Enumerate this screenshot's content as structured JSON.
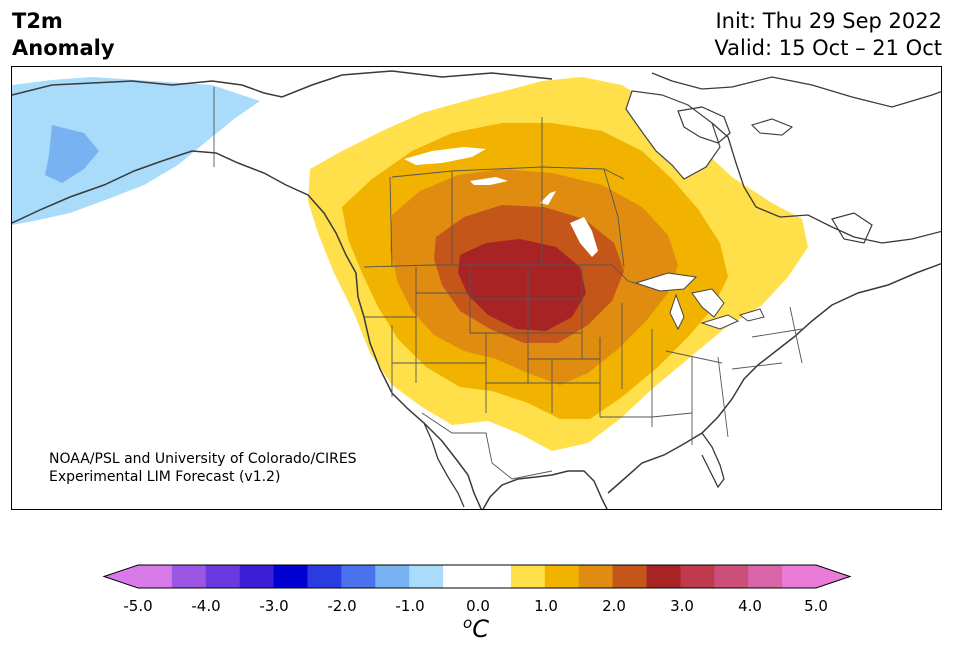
{
  "header": {
    "title_line1": "T2m",
    "title_line2": "Anomaly",
    "init": "Init: Thu 29 Sep 2022",
    "valid": "Valid: 15 Oct – 21 Oct"
  },
  "credit": {
    "line1": "NOAA/PSL and University of Colorado/CIRES",
    "line2": "Experimental LIM Forecast (v1.2)"
  },
  "map": {
    "region": "North America",
    "variable": "2-m temperature anomaly",
    "warm_center": "Northern Plains",
    "max_anomaly_c": 3.0,
    "cold_center": "Alaska",
    "min_anomaly_c": -1.5
  },
  "colorbar": {
    "unit_base": "C",
    "unit_super": "o",
    "ticks": [
      "-5.0",
      "-4.0",
      "-3.0",
      "-2.0",
      "-1.0",
      "0.0",
      "1.0",
      "2.0",
      "3.0",
      "4.0",
      "5.0"
    ],
    "extend": "both",
    "colors": {
      "under": "#d87ae8",
      "over": "#e87ad8",
      "bins": [
        "#d87ae8",
        "#9b57e3",
        "#6a3ae0",
        "#3a1fd6",
        "#0000d0",
        "#2a3be0",
        "#4b72ec",
        "#78b2f3",
        "#a9dbfb",
        "#ffffff",
        "#ffffff",
        "#ffe04a",
        "#f1b200",
        "#df8c10",
        "#c4561a",
        "#a82424",
        "#c03a4e",
        "#cc4f7a",
        "#d964a8",
        "#e87ad8"
      ]
    }
  }
}
